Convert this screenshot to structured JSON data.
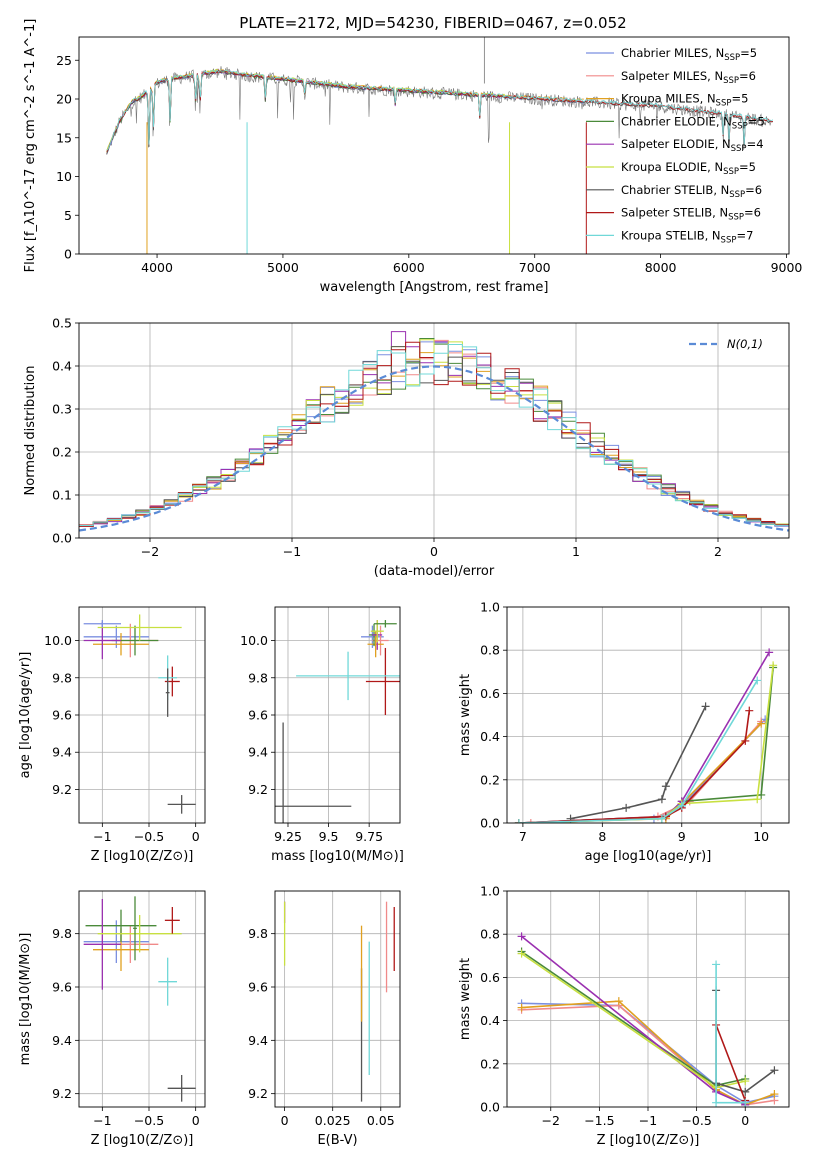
{
  "figure_title": "PLATE=2172, MJD=54230, FIBERID=0467, z=0.052",
  "colors": {
    "Chabrier MILES": "#7b8fe0",
    "Salpeter MILES": "#f08a8a",
    "Kroupa MILES": "#e0a020",
    "Chabrier ELODIE": "#4a8a3a",
    "Salpeter ELODIE": "#9a30b0",
    "Kroupa ELODIE": "#c8e040",
    "Chabrier STELIB": "#555555",
    "Salpeter STELIB": "#b01818",
    "Kroupa STELIB": "#70d8d8",
    "orange": "#e08030",
    "normal_curve": "#5b8bd6",
    "grid": "#b0b0b0"
  },
  "chart_data": [
    {
      "id": "spectrum",
      "type": "line",
      "xlabel": "wavelength [Angstrom, rest frame]",
      "ylabel": "Flux [f_λ10^-17 erg cm^-2 s^-1 A^-1]",
      "xlim": [
        3380,
        9020
      ],
      "ylim": [
        0,
        28
      ],
      "xticks": [
        4000,
        5000,
        6000,
        7000,
        8000,
        9000
      ],
      "yticks": [
        0,
        5,
        10,
        15,
        20,
        25
      ],
      "grid": false,
      "legend_position": "top-right",
      "legend": [
        {
          "imf": "Chabrier",
          "lib": "MILES",
          "n": 5
        },
        {
          "imf": "Salpeter",
          "lib": "MILES",
          "n": 6
        },
        {
          "imf": "Kroupa",
          "lib": "MILES",
          "n": 5
        },
        {
          "imf": "Chabrier",
          "lib": "ELODIE",
          "n": 5
        },
        {
          "imf": "Salpeter",
          "lib": "ELODIE",
          "n": 4
        },
        {
          "imf": "Kroupa",
          "lib": "ELODIE",
          "n": 5
        },
        {
          "imf": "Chabrier",
          "lib": "STELIB",
          "n": 6
        },
        {
          "imf": "Salpeter",
          "lib": "STELIB",
          "n": 6
        },
        {
          "imf": "Kroupa",
          "lib": "STELIB",
          "n": 7
        }
      ],
      "continuum": {
        "x": [
          3600,
          3700,
          3800,
          3900,
          4000,
          4100,
          4300,
          4500,
          4700,
          5000,
          5500,
          6000,
          6500,
          7000,
          7500,
          8000,
          8500,
          8900
        ],
        "y": [
          13,
          17,
          19.5,
          20.5,
          22,
          22.5,
          23,
          23.5,
          23,
          22.5,
          21.5,
          21,
          20.5,
          20,
          19.5,
          19,
          18,
          17
        ]
      }
    },
    {
      "id": "residuals",
      "type": "line",
      "xlabel": "(data-model)/error",
      "ylabel": "Normed distribution",
      "xlim": [
        -2.5,
        2.5
      ],
      "ylim": [
        0,
        0.5
      ],
      "xticks": [
        -2,
        -1,
        0,
        1,
        2
      ],
      "yticks": [
        0.0,
        0.1,
        0.2,
        0.3,
        0.4,
        0.5
      ],
      "grid": true,
      "legend_position": "top-right",
      "legend_label": "N(0,1)",
      "bin_width": 0.1,
      "peaks": {
        "Salpeter ELODIE": 0.48,
        "Kroupa ELODIE": 0.445
      }
    },
    {
      "id": "age-vs-z",
      "type": "scatter",
      "xlabel": "Z [log10(Z/Z⊙)]",
      "ylabel": "age [log10(age/yr)]",
      "xlim": [
        -1.25,
        0.1
      ],
      "ylim": [
        9.02,
        10.18
      ],
      "xticks": [
        -1.0,
        -0.5,
        0.0
      ],
      "yticks": [
        9.2,
        9.4,
        9.6,
        9.8,
        10.0
      ],
      "grid": true,
      "points": [
        {
          "series": "Chabrier MILES",
          "x": -0.85,
          "y": 10.02,
          "xerr": 0.35,
          "yerr": 0.06
        },
        {
          "series": "Salpeter MILES",
          "x": -0.7,
          "y": 10.0,
          "xerr": 0.3,
          "yerr": 0.09
        },
        {
          "series": "Kroupa MILES",
          "x": -0.8,
          "y": 9.98,
          "xerr": 0.3,
          "yerr": 0.06
        },
        {
          "series": "Chabrier ELODIE",
          "x": -0.65,
          "y": 10.0,
          "xerr": 0.25,
          "yerr": 0.08
        },
        {
          "series": "Salpeter ELODIE",
          "x": -1.0,
          "y": 10.0,
          "xerr": 0.2,
          "yerr": 0.1
        },
        {
          "series": "Kroupa ELODIE",
          "x": -0.6,
          "y": 10.07,
          "xerr": 0.45,
          "yerr": 0.07
        },
        {
          "series": "Chabrier STELIB",
          "x": -0.15,
          "y": 9.12,
          "xerr": 0.15,
          "yerr": 0.05
        },
        {
          "series": "Salpeter STELIB",
          "x": -0.25,
          "y": 9.78,
          "xerr": 0.08,
          "yerr": 0.08
        },
        {
          "series": "Kroupa STELIB",
          "x": -0.3,
          "y": 9.8,
          "xerr": 0.1,
          "yerr": 0.12
        },
        {
          "series": "Chabrier STELIB",
          "x": -0.3,
          "y": 9.72,
          "xerr": 0.02,
          "yerr": 0.13
        },
        {
          "series": "Chabrier MILES",
          "x": -1.0,
          "y": 10.09,
          "xerr": 0.2,
          "yerr": 0.02
        }
      ]
    },
    {
      "id": "age-vs-mass",
      "type": "scatter",
      "xlabel": "mass [log10(M/M⊙)]",
      "ylabel": "",
      "xlim": [
        9.17,
        9.94
      ],
      "ylim": [
        9.02,
        10.18
      ],
      "xticks": [
        9.25,
        9.5,
        9.75
      ],
      "yticks": [
        9.2,
        9.4,
        9.6,
        9.8,
        10.0
      ],
      "grid": true,
      "points": [
        {
          "series": "Chabrier MILES",
          "x": 9.77,
          "y": 10.02,
          "xerr": 0.07,
          "yerr": 0.06
        },
        {
          "series": "Salpeter MILES",
          "x": 9.82,
          "y": 10.0,
          "xerr": 0.05,
          "yerr": 0.08
        },
        {
          "series": "Kroupa MILES",
          "x": 9.79,
          "y": 9.98,
          "xerr": 0.05,
          "yerr": 0.07
        },
        {
          "series": "Chabrier ELODIE",
          "x": 9.78,
          "y": 10.03,
          "xerr": 0.03,
          "yerr": 0.06
        },
        {
          "series": "Salpeter ELODIE",
          "x": 9.8,
          "y": 10.03,
          "xerr": 0.03,
          "yerr": 0.08
        },
        {
          "series": "Kroupa ELODIE",
          "x": 9.8,
          "y": 10.05,
          "xerr": 0.04,
          "yerr": 0.06
        },
        {
          "series": "Chabrier STELIB",
          "x": 9.22,
          "y": 9.11,
          "xerr": 0.42,
          "yerr": 0.45
        },
        {
          "series": "Salpeter STELIB",
          "x": 9.85,
          "y": 9.78,
          "xerr": 0.12,
          "yerr": 0.18
        },
        {
          "series": "Kroupa STELIB",
          "x": 9.62,
          "y": 9.81,
          "xerr": 0.32,
          "yerr": 0.13
        },
        {
          "series": "Chabrier ELODIE",
          "x": 9.85,
          "y": 10.09,
          "xerr": 0.07,
          "yerr": 0.02
        }
      ]
    },
    {
      "id": "mass-weight-vs-age",
      "type": "line",
      "xlabel": "age [log10(age/yr)]",
      "ylabel": "mass weight",
      "xlim": [
        6.8,
        10.35
      ],
      "ylim": [
        0,
        1.0
      ],
      "xticks": [
        7,
        8,
        9,
        10
      ],
      "yticks": [
        0.0,
        0.2,
        0.4,
        0.6,
        0.8,
        1.0
      ],
      "grid": true,
      "series": [
        {
          "name": "Chabrier MILES",
          "x": [
            6.95,
            8.65,
            9.0,
            10.05
          ],
          "y": [
            0.0,
            0.02,
            0.08,
            0.48
          ]
        },
        {
          "name": "Salpeter MILES",
          "x": [
            7.1,
            8.7,
            9.1,
            10.0
          ],
          "y": [
            0.0,
            0.03,
            0.1,
            0.47
          ]
        },
        {
          "name": "Kroupa MILES",
          "x": [
            6.95,
            8.8,
            9.0,
            10.0
          ],
          "y": [
            0.0,
            0.02,
            0.09,
            0.46
          ]
        },
        {
          "name": "Chabrier ELODIE",
          "x": [
            6.95,
            8.8,
            9.0,
            10.0,
            10.15
          ],
          "y": [
            0.0,
            0.03,
            0.1,
            0.13,
            0.72
          ]
        },
        {
          "name": "Salpeter ELODIE",
          "x": [
            6.95,
            8.8,
            9.0,
            10.1
          ],
          "y": [
            0.0,
            0.03,
            0.1,
            0.79
          ]
        },
        {
          "name": "Kroupa ELODIE",
          "x": [
            6.95,
            8.75,
            9.0,
            9.95,
            10.15
          ],
          "y": [
            0.0,
            0.02,
            0.09,
            0.11,
            0.73
          ]
        },
        {
          "name": "Chabrier STELIB",
          "x": [
            7.6,
            8.3,
            8.75,
            8.8,
            9.3
          ],
          "y": [
            0.02,
            0.07,
            0.11,
            0.17,
            0.54
          ]
        },
        {
          "name": "Salpeter STELIB",
          "x": [
            6.95,
            8.8,
            9.0,
            9.8,
            9.85
          ],
          "y": [
            0.0,
            0.03,
            0.07,
            0.38,
            0.52
          ]
        },
        {
          "name": "Kroupa STELIB",
          "x": [
            6.95,
            8.75,
            9.0,
            9.95
          ],
          "y": [
            0.0,
            0.02,
            0.08,
            0.66
          ]
        }
      ]
    },
    {
      "id": "mass-vs-z",
      "type": "scatter",
      "xlabel": "Z [log10(Z/Z⊙)]",
      "ylabel": "mass [log10(M/M⊙)]",
      "xlim": [
        -1.25,
        0.1
      ],
      "ylim": [
        9.15,
        9.96
      ],
      "xticks": [
        -1.0,
        -0.5,
        0.0
      ],
      "yticks": [
        9.2,
        9.4,
        9.6,
        9.8
      ],
      "grid": true,
      "points": [
        {
          "series": "Chabrier MILES",
          "x": -0.85,
          "y": 9.77,
          "xerr": 0.35,
          "yerr": 0.08
        },
        {
          "series": "Salpeter MILES",
          "x": -0.7,
          "y": 9.76,
          "xerr": 0.3,
          "yerr": 0.07
        },
        {
          "series": "Kroupa MILES",
          "x": -0.8,
          "y": 9.74,
          "xerr": 0.3,
          "yerr": 0.08
        },
        {
          "series": "Chabrier ELODIE",
          "x": -0.8,
          "y": 9.83,
          "xerr": 0.38,
          "yerr": 0.06
        },
        {
          "series": "Salpeter ELODIE",
          "x": -1.0,
          "y": 9.76,
          "xerr": 0.2,
          "yerr": 0.17
        },
        {
          "series": "Kroupa ELODIE",
          "x": -0.6,
          "y": 9.8,
          "xerr": 0.45,
          "yerr": 0.07
        },
        {
          "series": "Chabrier STELIB",
          "x": -0.15,
          "y": 9.22,
          "xerr": 0.15,
          "yerr": 0.05
        },
        {
          "series": "Salpeter STELIB",
          "x": -0.25,
          "y": 9.85,
          "xerr": 0.08,
          "yerr": 0.05
        },
        {
          "series": "Kroupa STELIB",
          "x": -0.3,
          "y": 9.62,
          "xerr": 0.1,
          "yerr": 0.09
        },
        {
          "series": "Chabrier ELODIE",
          "x": -0.65,
          "y": 9.82,
          "xerr": 0.02,
          "yerr": 0.12
        }
      ]
    },
    {
      "id": "mass-vs-ebv",
      "type": "scatter",
      "xlabel": "E(B-V)",
      "ylabel": "",
      "xlim": [
        -0.005,
        0.06
      ],
      "ylim": [
        9.15,
        9.96
      ],
      "xticks": [
        0.0,
        0.025,
        0.05
      ],
      "yticks": [
        9.2,
        9.4,
        9.6,
        9.8
      ],
      "grid": true,
      "points": [
        {
          "series": "Salpeter ELODIE",
          "x": 0.0,
          "y": 9.88,
          "yerr": 0.04
        },
        {
          "series": "Kroupa ELODIE",
          "x": 0.0,
          "y": 9.8,
          "yerr": 0.12
        },
        {
          "series": "Chabrier STELIB",
          "x": 0.04,
          "y": 9.42,
          "yerr": 0.25
        },
        {
          "series": "Kroupa MILES",
          "x": 0.04,
          "y": 9.65,
          "yerr": 0.18
        },
        {
          "series": "Kroupa STELIB",
          "x": 0.044,
          "y": 9.52,
          "yerr": 0.25
        },
        {
          "series": "Salpeter MILES",
          "x": 0.053,
          "y": 9.75,
          "yerr": 0.17
        },
        {
          "series": "Salpeter STELIB",
          "x": 0.057,
          "y": 9.78,
          "yerr": 0.12
        }
      ]
    },
    {
      "id": "mass-weight-vs-z",
      "type": "line",
      "xlabel": "Z [log10(Z/Z⊙)]",
      "ylabel": "mass weight",
      "xlim": [
        -2.45,
        0.45
      ],
      "ylim": [
        0,
        1.0
      ],
      "xticks": [
        -2.0,
        -1.5,
        -1.0,
        -0.5,
        0.0
      ],
      "yticks": [
        0.0,
        0.2,
        0.4,
        0.6,
        0.8,
        1.0
      ],
      "grid": true,
      "series": [
        {
          "name": "Chabrier MILES",
          "x": [
            -2.3,
            -1.3,
            -0.3,
            0.0,
            0.3
          ],
          "y": [
            0.48,
            0.47,
            0.1,
            0.02,
            0.05
          ]
        },
        {
          "name": "Salpeter MILES",
          "x": [
            -2.3,
            -1.3,
            -0.3,
            0.0,
            0.3
          ],
          "y": [
            0.45,
            0.47,
            0.08,
            0.01,
            0.03
          ]
        },
        {
          "name": "Kroupa MILES",
          "x": [
            -2.3,
            -1.3,
            -0.3,
            0.0,
            0.3
          ],
          "y": [
            0.46,
            0.49,
            0.08,
            0.01,
            0.06
          ]
        },
        {
          "name": "Chabrier ELODIE",
          "x": [
            -2.3,
            -0.3,
            0.0
          ],
          "y": [
            0.72,
            0.1,
            0.13
          ]
        },
        {
          "name": "Salpeter ELODIE",
          "x": [
            -2.3,
            -0.3,
            0.0
          ],
          "y": [
            0.79,
            0.07,
            0.01
          ]
        },
        {
          "name": "Kroupa ELODIE",
          "x": [
            -2.3,
            -0.3,
            0.0
          ],
          "y": [
            0.71,
            0.09,
            0.12
          ]
        },
        {
          "name": "Chabrier STELIB",
          "x": [
            -0.3,
            -0.3,
            0.0,
            0.3
          ],
          "y": [
            0.54,
            0.11,
            0.07,
            0.17
          ]
        },
        {
          "name": "Salpeter STELIB",
          "x": [
            -0.3,
            0.0
          ],
          "y": [
            0.38,
            0.03
          ]
        },
        {
          "name": "Kroupa STELIB",
          "x": [
            -0.3,
            -0.3,
            0.0
          ],
          "y": [
            0.66,
            0.02,
            0.02
          ]
        }
      ]
    }
  ]
}
